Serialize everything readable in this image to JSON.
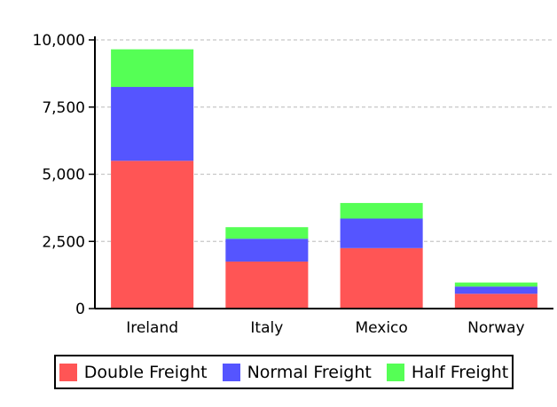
{
  "chart_data": {
    "type": "bar",
    "stacked": true,
    "categories": [
      "Ireland",
      "Italy",
      "Mexico",
      "Norway"
    ],
    "series": [
      {
        "name": "Double Freight",
        "color": "#ff5555",
        "values": [
          5500,
          1750,
          2250,
          550
        ]
      },
      {
        "name": "Normal Freight",
        "color": "#5555ff",
        "values": [
          2750,
          850,
          1100,
          270
        ]
      },
      {
        "name": "Half Freight",
        "color": "#55ff55",
        "values": [
          1400,
          430,
          580,
          150
        ]
      }
    ],
    "yticks": [
      0,
      2500,
      5000,
      7500,
      10000
    ],
    "ytick_labels": [
      "0",
      "2,500",
      "5,000",
      "7,500",
      "10,000"
    ],
    "ylim": [
      0,
      10000
    ],
    "grid": true,
    "legend_position": "bottom",
    "title": "",
    "xlabel": "",
    "ylabel": ""
  }
}
